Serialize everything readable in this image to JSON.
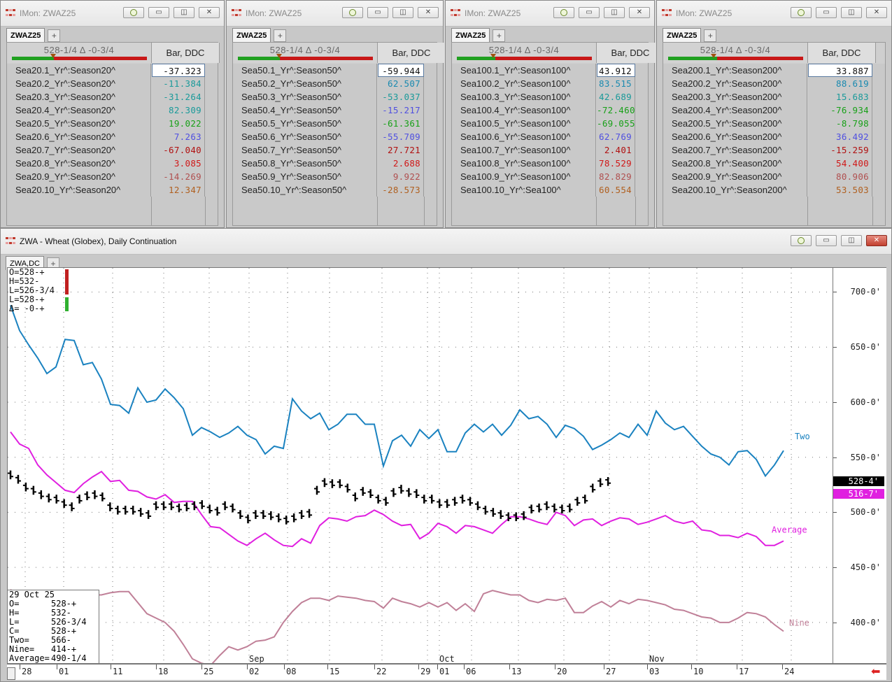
{
  "monitors": [
    {
      "title": "IMon: ZWAZ25",
      "tab": "ZWAZ25",
      "header_text": "528-1/4 Δ -0-3/4",
      "column": "Bar, DDC",
      "rows": [
        {
          "label": "Sea20.1_Yr^:Season20^",
          "value": "-37.323",
          "color": "#111111"
        },
        {
          "label": "Sea20.2_Yr^:Season20^",
          "value": "-11.384",
          "color": "#1a9a9a"
        },
        {
          "label": "Sea20.3_Yr^:Season20^",
          "value": "-31.264",
          "color": "#1a9a9a"
        },
        {
          "label": "Sea20.4_Yr^:Season20^",
          "value": "82.309",
          "color": "#1a9a9a"
        },
        {
          "label": "Sea20.5_Yr^:Season20^",
          "value": "19.022",
          "color": "#18a018"
        },
        {
          "label": "Sea20.6_Yr^:Season20^",
          "value": "7.263",
          "color": "#5050e0"
        },
        {
          "label": "Sea20.7_Yr^:Season20^",
          "value": "-67.040",
          "color": "#b01010"
        },
        {
          "label": "Sea20.8_Yr^:Season20^",
          "value": "3.085",
          "color": "#d01818"
        },
        {
          "label": "Sea20.9_Yr^:Season20^",
          "value": "-14.269",
          "color": "#b05050"
        },
        {
          "label": "Sea20.10_Yr^:Season20^",
          "value": "12.347",
          "color": "#b06020"
        }
      ]
    },
    {
      "title": "IMon: ZWAZ25",
      "tab": "ZWAZ25",
      "header_text": "528-1/4 Δ -0-3/4",
      "column": "Bar, DDC",
      "rows": [
        {
          "label": "Sea50.1_Yr^:Season50^",
          "value": "-59.944",
          "color": "#111111"
        },
        {
          "label": "Sea50.2_Yr^:Season50^",
          "value": "62.507",
          "color": "#1a8ab0"
        },
        {
          "label": "Sea50.3_Yr^:Season50^",
          "value": "-53.037",
          "color": "#1a9a9a"
        },
        {
          "label": "Sea50.4_Yr^:Season50^",
          "value": "-15.217",
          "color": "#5050e0"
        },
        {
          "label": "Sea50.5_Yr^:Season50^",
          "value": "-61.361",
          "color": "#18a018"
        },
        {
          "label": "Sea50.6_Yr^:Season50^",
          "value": "-55.709",
          "color": "#5050e0"
        },
        {
          "label": "Sea50.7_Yr^:Season50^",
          "value": "27.721",
          "color": "#b01010"
        },
        {
          "label": "Sea50.8_Yr^:Season50^",
          "value": "2.688",
          "color": "#d01818"
        },
        {
          "label": "Sea50.9_Yr^:Season50^",
          "value": "9.922",
          "color": "#b05050"
        },
        {
          "label": "Sea50.10_Yr^:Season50^",
          "value": "-28.573",
          "color": "#b06020"
        }
      ]
    },
    {
      "title": "IMon: ZWAZ25",
      "tab": "ZWAZ25",
      "header_text": "528-1/4 Δ -0-3/4",
      "column": "Bar, DDC",
      "rows": [
        {
          "label": "Sea100.1_Yr^:Season100^",
          "value": "43.912",
          "color": "#111111"
        },
        {
          "label": "Sea100.2_Yr^:Season100^",
          "value": "83.515",
          "color": "#1a8ab0"
        },
        {
          "label": "Sea100.3_Yr^:Season100^",
          "value": "42.689",
          "color": "#1a9a9a"
        },
        {
          "label": "Sea100.4_Yr^:Season100^",
          "value": "-72.460",
          "color": "#18a018"
        },
        {
          "label": "Sea100.5_Yr^:Season100^",
          "value": "-69.055",
          "color": "#18a018"
        },
        {
          "label": "Sea100.6_Yr^:Season100^",
          "value": "62.769",
          "color": "#5050e0"
        },
        {
          "label": "Sea100.7_Yr^:Season100^",
          "value": "2.401",
          "color": "#b01010"
        },
        {
          "label": "Sea100.8_Yr^:Season100^",
          "value": "78.529",
          "color": "#d01818"
        },
        {
          "label": "Sea100.9_Yr^:Season100^",
          "value": "82.829",
          "color": "#b05050"
        },
        {
          "label": "Sea100.10_Yr^:Sea100^",
          "value": "60.554",
          "color": "#b06020"
        }
      ]
    },
    {
      "title": "IMon: ZWAZ25",
      "tab": "ZWAZ25",
      "header_text": "528-1/4 Δ -0-3/4",
      "column": "Bar, DDC",
      "rows": [
        {
          "label": "Sea200.1_Yr^:Season200^",
          "value": "33.887",
          "color": "#111111"
        },
        {
          "label": "Sea200.2_Yr^:Season200^",
          "value": "88.619",
          "color": "#1a8ab0"
        },
        {
          "label": "Sea200.3_Yr^:Season200^",
          "value": "15.683",
          "color": "#1a9a9a"
        },
        {
          "label": "Sea200.4_Yr^:Season200^",
          "value": "-76.934",
          "color": "#18a018"
        },
        {
          "label": "Sea200.5_Yr^:Season200^",
          "value": "-8.798",
          "color": "#18a018"
        },
        {
          "label": "Sea200.6_Yr^:Season200^",
          "value": "36.492",
          "color": "#5050e0"
        },
        {
          "label": "Sea200.7_Yr^:Season200^",
          "value": "-15.259",
          "color": "#b01010"
        },
        {
          "label": "Sea200.8_Yr^:Season200^",
          "value": "54.400",
          "color": "#d01818"
        },
        {
          "label": "Sea200.9_Yr^:Season200^",
          "value": "80.906",
          "color": "#b05050"
        },
        {
          "label": "Sea200.10_Yr^:Season200^",
          "value": "53.503",
          "color": "#b06020"
        }
      ]
    }
  ],
  "chart_window": {
    "title": "ZWA - Wheat (Globex), Daily Continuation",
    "tab": "ZWA,DC",
    "ohlc_topleft": [
      "O=528-+",
      "H=532-",
      "L=526-3/4",
      "L=528-+",
      "Δ= -0-+"
    ],
    "info_date": "29 Oct 25",
    "info_rows": [
      {
        "k": "O=",
        "v": "528-+"
      },
      {
        "k": "H=",
        "v": "532-"
      },
      {
        "k": "L=",
        "v": "526-3/4"
      },
      {
        "k": "C=",
        "v": "528-+"
      },
      {
        "k": "Two=",
        "v": "566-"
      },
      {
        "k": "Nine=",
        "v": "414-+"
      },
      {
        "k": "Average=",
        "v": "490-1/4"
      }
    ],
    "last_price_label": "528-4'",
    "average_price_label": "516-7'"
  },
  "chart_data": {
    "type": "line",
    "ylim": [
      365,
      720
    ],
    "yticks": [
      {
        "v": 700,
        "label": "700-0'"
      },
      {
        "v": 650,
        "label": "650-0'"
      },
      {
        "v": 600,
        "label": "600-0'"
      },
      {
        "v": 550,
        "label": "550-0'"
      },
      {
        "v": 500,
        "label": "500-0'"
      },
      {
        "v": 450,
        "label": "450-0'"
      },
      {
        "v": 400,
        "label": "400-0'"
      }
    ],
    "xticks": [
      "28",
      "01",
      "11",
      "18",
      "25",
      "02",
      "08",
      "15",
      "22",
      "29",
      "01",
      "06",
      "13",
      "20",
      "27",
      "03",
      "10",
      "17",
      "24"
    ],
    "month_labels": [
      "Sep",
      "Oct",
      "Nov"
    ],
    "series": [
      {
        "name": "Two",
        "color": "#1a82c0",
        "values": [
          688,
          665,
          652,
          640,
          626,
          632,
          657,
          656,
          634,
          636,
          621,
          598,
          597,
          590,
          613,
          600,
          602,
          612,
          604,
          594,
          570,
          577,
          573,
          568,
          572,
          578,
          570,
          566,
          553,
          560,
          558,
          603,
          592,
          585,
          590,
          575,
          580,
          589,
          589,
          580,
          580,
          542,
          565,
          570,
          560,
          575,
          567,
          575,
          555,
          555,
          572,
          580,
          573,
          580,
          570,
          579,
          593,
          585,
          587,
          580,
          568,
          579,
          576,
          569,
          557,
          561,
          566,
          572,
          568,
          580,
          570,
          592,
          581,
          575,
          578,
          569,
          560,
          553,
          550,
          543,
          555,
          556,
          548,
          533,
          543,
          556
        ]
      },
      {
        "name": "Average",
        "color": "#e020e0",
        "values": [
          573,
          562,
          558,
          543,
          534,
          527,
          520,
          518,
          526,
          532,
          537,
          528,
          529,
          520,
          519,
          514,
          512,
          516,
          509,
          510,
          510,
          498,
          487,
          486,
          480,
          474,
          470,
          476,
          481,
          475,
          470,
          469,
          476,
          472,
          488,
          495,
          494,
          492,
          496,
          497,
          502,
          498,
          492,
          488,
          489,
          476,
          481,
          490,
          487,
          481,
          488,
          487,
          484,
          481,
          489,
          496,
          496,
          494,
          491,
          489,
          500,
          497,
          488,
          493,
          494,
          488,
          492,
          495,
          494,
          489,
          491,
          494,
          497,
          492,
          490,
          492,
          484,
          483,
          479,
          479,
          477,
          481,
          478,
          470,
          470,
          474
        ]
      },
      {
        "name": "Nine",
        "color": "#c08098",
        "values": [
          430,
          420,
          417,
          419,
          418,
          420,
          418,
          424,
          419,
          425,
          425,
          427,
          428,
          428,
          418,
          408,
          404,
          400,
          392,
          380,
          367,
          363,
          361,
          370,
          378,
          375,
          378,
          383,
          384,
          387,
          400,
          410,
          418,
          422,
          422,
          420,
          424,
          423,
          422,
          420,
          419,
          413,
          422,
          419,
          417,
          414,
          418,
          414,
          418,
          411,
          417,
          410,
          426,
          429,
          427,
          425,
          425,
          420,
          418,
          421,
          420,
          422,
          409,
          409,
          415,
          419,
          414,
          420,
          417,
          421,
          420,
          418,
          416,
          412,
          411,
          408,
          405,
          404,
          400,
          400,
          404,
          409,
          408,
          405,
          398,
          392
        ]
      },
      {
        "name": "ZWA",
        "color": "#000000",
        "ohlc_note": "daily bars, value = midpoint",
        "values": [
          534,
          530,
          523,
          520,
          516,
          513,
          512,
          508,
          505,
          512,
          515,
          516,
          514,
          505,
          502,
          502,
          502,
          500,
          498,
          506,
          506,
          506,
          504,
          505,
          506,
          507,
          503,
          501,
          506,
          504,
          498,
          494,
          498,
          498,
          497,
          495,
          493,
          495,
          498,
          499,
          520,
          527,
          526,
          526,
          522,
          514,
          519,
          517,
          512,
          510,
          518,
          521,
          518,
          517,
          512,
          512,
          508,
          508,
          510,
          512,
          510,
          506,
          502,
          500,
          498,
          496,
          496,
          497,
          503,
          504,
          506,
          504,
          503,
          504,
          510,
          512,
          522,
          527,
          528
        ]
      }
    ]
  }
}
